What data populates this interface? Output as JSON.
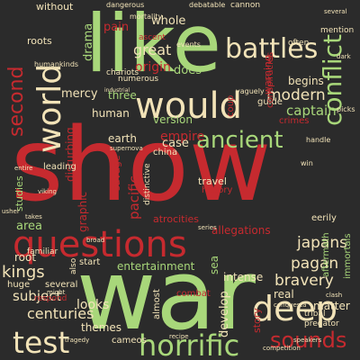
{
  "palette": {
    "background": "#2b2b2b",
    "red": "#c62a2f",
    "green": "#a8d77a",
    "cream": "#f2e3b8",
    "orange": "#f0a35b",
    "darkred": "#8e2a2f"
  },
  "words": [
    {
      "text": "show",
      "color": "#c62a2f"
    },
    {
      "text": "war",
      "color": "#a8d77a"
    },
    {
      "text": "like",
      "color": "#a8d77a"
    },
    {
      "text": "questions",
      "color": "#c62a2f"
    },
    {
      "text": "would",
      "color": "#f2e3b8"
    },
    {
      "text": "world",
      "color": "#f2e3b8"
    },
    {
      "text": "deep",
      "color": "#f2e3b8"
    },
    {
      "text": "horrific",
      "color": "#a8d77a"
    },
    {
      "text": "test",
      "color": "#f2e3b8"
    },
    {
      "text": "battles",
      "color": "#f2e3b8"
    },
    {
      "text": "conflict",
      "color": "#a8d77a"
    },
    {
      "text": "ancient",
      "color": "#a8d77a"
    },
    {
      "text": "second",
      "color": "#c62a2f"
    },
    {
      "text": "sounds",
      "color": "#c62a2f"
    },
    {
      "text": "kings",
      "color": "#f2e3b8"
    },
    {
      "text": "centuries",
      "color": "#f2e3b8"
    },
    {
      "text": "modern",
      "color": "#f2e3b8"
    },
    {
      "text": "captain",
      "color": "#a8d77a"
    },
    {
      "text": "japans",
      "color": "#f2e3b8"
    },
    {
      "text": "pagan",
      "color": "#f2e3b8"
    },
    {
      "text": "bravery",
      "color": "#f2e3b8"
    },
    {
      "text": "matter",
      "color": "#f2e3b8"
    },
    {
      "text": "subject",
      "color": "#f2e3b8"
    },
    {
      "text": "looks",
      "color": "#f2e3b8"
    },
    {
      "text": "themes",
      "color": "#f2e3b8"
    },
    {
      "text": "entertainment",
      "color": "#a8d77a"
    },
    {
      "text": "great",
      "color": "#f2e3b8"
    },
    {
      "text": "origin",
      "color": "#c62a2f"
    },
    {
      "text": "does",
      "color": "#a8d77a"
    },
    {
      "text": "whole",
      "color": "#f2e3b8"
    },
    {
      "text": "mercy",
      "color": "#f2e3b8"
    },
    {
      "text": "human",
      "color": "#f2e3b8"
    },
    {
      "text": "empire",
      "color": "#c62a2f"
    },
    {
      "text": "three",
      "color": "#a8d77a"
    },
    {
      "text": "version",
      "color": "#a8d77a"
    },
    {
      "text": "begins",
      "color": "#f2e3b8"
    },
    {
      "text": "warning",
      "color": "#c62a2f"
    },
    {
      "text": "pacific",
      "color": "#c62a2f"
    },
    {
      "text": "graphic",
      "color": "#c62a2f"
    },
    {
      "text": "case",
      "color": "#f2e3b8"
    },
    {
      "text": "earth",
      "color": "#f2e3b8"
    },
    {
      "text": "pain",
      "color": "#c62a2f"
    },
    {
      "text": "drama",
      "color": "#a8d77a"
    },
    {
      "text": "area",
      "color": "#a8d77a"
    },
    {
      "text": "root",
      "color": "#f2e3b8"
    },
    {
      "text": "huge",
      "color": "#f2e3b8"
    },
    {
      "text": "several",
      "color": "#f2e3b8"
    },
    {
      "text": "intense",
      "color": "#f2e3b8"
    },
    {
      "text": "sea",
      "color": "#a8d77a"
    },
    {
      "text": "develop",
      "color": "#f2e3b8"
    },
    {
      "text": "allegations",
      "color": "#c62a2f"
    },
    {
      "text": "story",
      "color": "#c62a2f"
    },
    {
      "text": "travel",
      "color": "#f2e3b8"
    },
    {
      "text": "history",
      "color": "#c62a2f"
    },
    {
      "text": "cameos",
      "color": "#f2e3b8"
    },
    {
      "text": "combat",
      "color": "#c62a2f"
    },
    {
      "text": "real",
      "color": "#f2e3b8"
    },
    {
      "text": "guide",
      "color": "#f2e3b8"
    },
    {
      "text": "crimes",
      "color": "#c62a2f"
    },
    {
      "text": "without",
      "color": "#f2e3b8"
    },
    {
      "text": "roots",
      "color": "#f2e3b8"
    },
    {
      "text": "disturbing",
      "color": "#c62a2f"
    },
    {
      "text": "savage",
      "color": "#c62a2f"
    },
    {
      "text": "leading",
      "color": "#f2e3b8"
    },
    {
      "text": "studies",
      "color": "#a8d77a"
    },
    {
      "text": "familiar",
      "color": "#f2e3b8"
    },
    {
      "text": "china",
      "color": "#f2e3b8"
    },
    {
      "text": "atrocities",
      "color": "#c62a2f"
    },
    {
      "text": "distinctive",
      "color": "#f2e3b8"
    },
    {
      "text": "almost",
      "color": "#f2e3b8"
    },
    {
      "text": "start",
      "color": "#f2e3b8"
    },
    {
      "text": "also",
      "color": "#f2e3b8"
    },
    {
      "text": "respond",
      "color": "#c62a2f"
    },
    {
      "text": "numerous",
      "color": "#f2e3b8"
    },
    {
      "text": "eerily",
      "color": "#f2e3b8"
    },
    {
      "text": "conspiracies",
      "color": "#c62a2f"
    },
    {
      "text": "mention",
      "color": "#f2e3b8"
    },
    {
      "text": "often",
      "color": "#f2e3b8"
    },
    {
      "text": "mortality",
      "color": "#f2e3b8"
    },
    {
      "text": "events",
      "color": "#f2e3b8"
    },
    {
      "text": "dangerous",
      "color": "#f2e3b8"
    },
    {
      "text": "cannon",
      "color": "#f2e3b8"
    },
    {
      "text": "humankinds",
      "color": "#f2e3b8"
    },
    {
      "text": "chariots",
      "color": "#f2e3b8"
    },
    {
      "text": "ascent",
      "color": "#c62a2f"
    },
    {
      "text": "aftermath",
      "color": "#a8d77a"
    },
    {
      "text": "immortals",
      "color": "#a8d77a"
    },
    {
      "text": "predator",
      "color": "#f2e3b8"
    },
    {
      "text": "tribal",
      "color": "#f2e3b8"
    },
    {
      "text": "supernova",
      "color": "#f2e3b8"
    },
    {
      "text": "coup",
      "color": "#c62a2f"
    },
    {
      "text": "viking",
      "color": "#f2e3b8"
    },
    {
      "text": "handle",
      "color": "#f2e3b8"
    },
    {
      "text": "picks",
      "color": "#f2e3b8"
    },
    {
      "text": "series",
      "color": "#f2e3b8"
    },
    {
      "text": "debatable",
      "color": "#f2e3b8"
    },
    {
      "text": "several",
      "color": "#f2e3b8"
    },
    {
      "text": "conquesta",
      "color": "#f2e3b8"
    },
    {
      "text": "speakers",
      "color": "#f2e3b8"
    },
    {
      "text": "recipe",
      "color": "#f2e3b8"
    },
    {
      "text": "competition",
      "color": "#f2e3b8"
    },
    {
      "text": "industrial",
      "color": "#f2e3b8"
    },
    {
      "text": "vaguely",
      "color": "#f2e3b8"
    },
    {
      "text": "broad",
      "color": "#f2e3b8"
    },
    {
      "text": "might",
      "color": "#f2e3b8"
    },
    {
      "text": "entire",
      "color": "#f2e3b8"
    },
    {
      "text": "takes",
      "color": "#f2e3b8"
    },
    {
      "text": "usher",
      "color": "#f2e3b8"
    },
    {
      "text": "win",
      "color": "#f2e3b8"
    },
    {
      "text": "tragedy",
      "color": "#f2e3b8"
    },
    {
      "text": "clash",
      "color": "#f2e3b8"
    },
    {
      "text": "dark",
      "color": "#f2e3b8"
    }
  ]
}
